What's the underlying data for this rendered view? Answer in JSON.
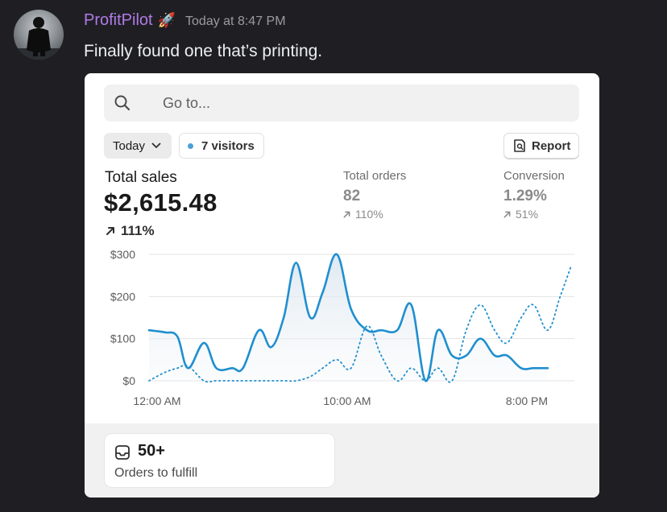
{
  "message": {
    "username": "ProfitPilot",
    "username_emoji": "🚀",
    "timestamp": "Today at 8:47 PM",
    "text": "Finally found one that’s printing."
  },
  "dashboard": {
    "search_placeholder": "Go to...",
    "date_filter": "Today",
    "visitors": "7 visitors",
    "report_button": "Report",
    "total_sales": {
      "label": "Total sales",
      "value": "$2,615.48",
      "change": "111%"
    },
    "total_orders": {
      "label": "Total orders",
      "value": "82",
      "change": "110%"
    },
    "conversion": {
      "label": "Conversion",
      "value": "1.29%",
      "change": "51%"
    },
    "orders_to_fulfill": {
      "count": "50+",
      "label": "Orders to fulfill"
    }
  },
  "chart_data": {
    "type": "line",
    "yticks": [
      "$300",
      "$200",
      "$100",
      "$0"
    ],
    "xticks": [
      "12:00 AM",
      "10:00 AM",
      "8:00 PM"
    ],
    "ylim": [
      0,
      300
    ],
    "grid": true,
    "series": [
      {
        "style": "solid",
        "color": "#1f8fcf",
        "x": [
          0,
          0.9,
          1.6,
          2.2,
          3.1,
          3.8,
          4.7,
          5.3,
          6.2,
          6.9,
          7.6,
          8.3,
          9.1,
          9.8,
          10.6,
          11.4,
          12.3,
          13.1,
          14.0,
          14.8,
          15.6,
          16.3,
          17.1,
          17.9,
          18.7,
          19.5,
          20.2,
          21.0,
          21.7,
          22.5
        ],
        "y": [
          120,
          115,
          105,
          30,
          90,
          30,
          30,
          30,
          120,
          80,
          150,
          280,
          150,
          210,
          300,
          170,
          120,
          120,
          120,
          180,
          0,
          120,
          60,
          60,
          100,
          60,
          60,
          30,
          30,
          30
        ]
      },
      {
        "style": "dotted",
        "color": "#1f8fcf",
        "x": [
          0,
          0.9,
          1.6,
          2.2,
          3.1,
          3.8,
          4.7,
          5.3,
          6.2,
          6.9,
          7.6,
          8.3,
          9.1,
          9.8,
          10.6,
          11.4,
          12.3,
          13.1,
          14.0,
          14.8,
          15.6,
          16.3,
          17.1,
          17.9,
          18.7,
          19.5,
          20.2,
          21.0,
          21.7,
          22.5,
          23.2,
          23.8
        ],
        "y": [
          0,
          20,
          30,
          35,
          0,
          0,
          0,
          0,
          0,
          0,
          0,
          0,
          10,
          30,
          50,
          30,
          130,
          60,
          0,
          30,
          0,
          30,
          0,
          120,
          180,
          120,
          90,
          150,
          180,
          120,
          200,
          270
        ]
      }
    ]
  }
}
